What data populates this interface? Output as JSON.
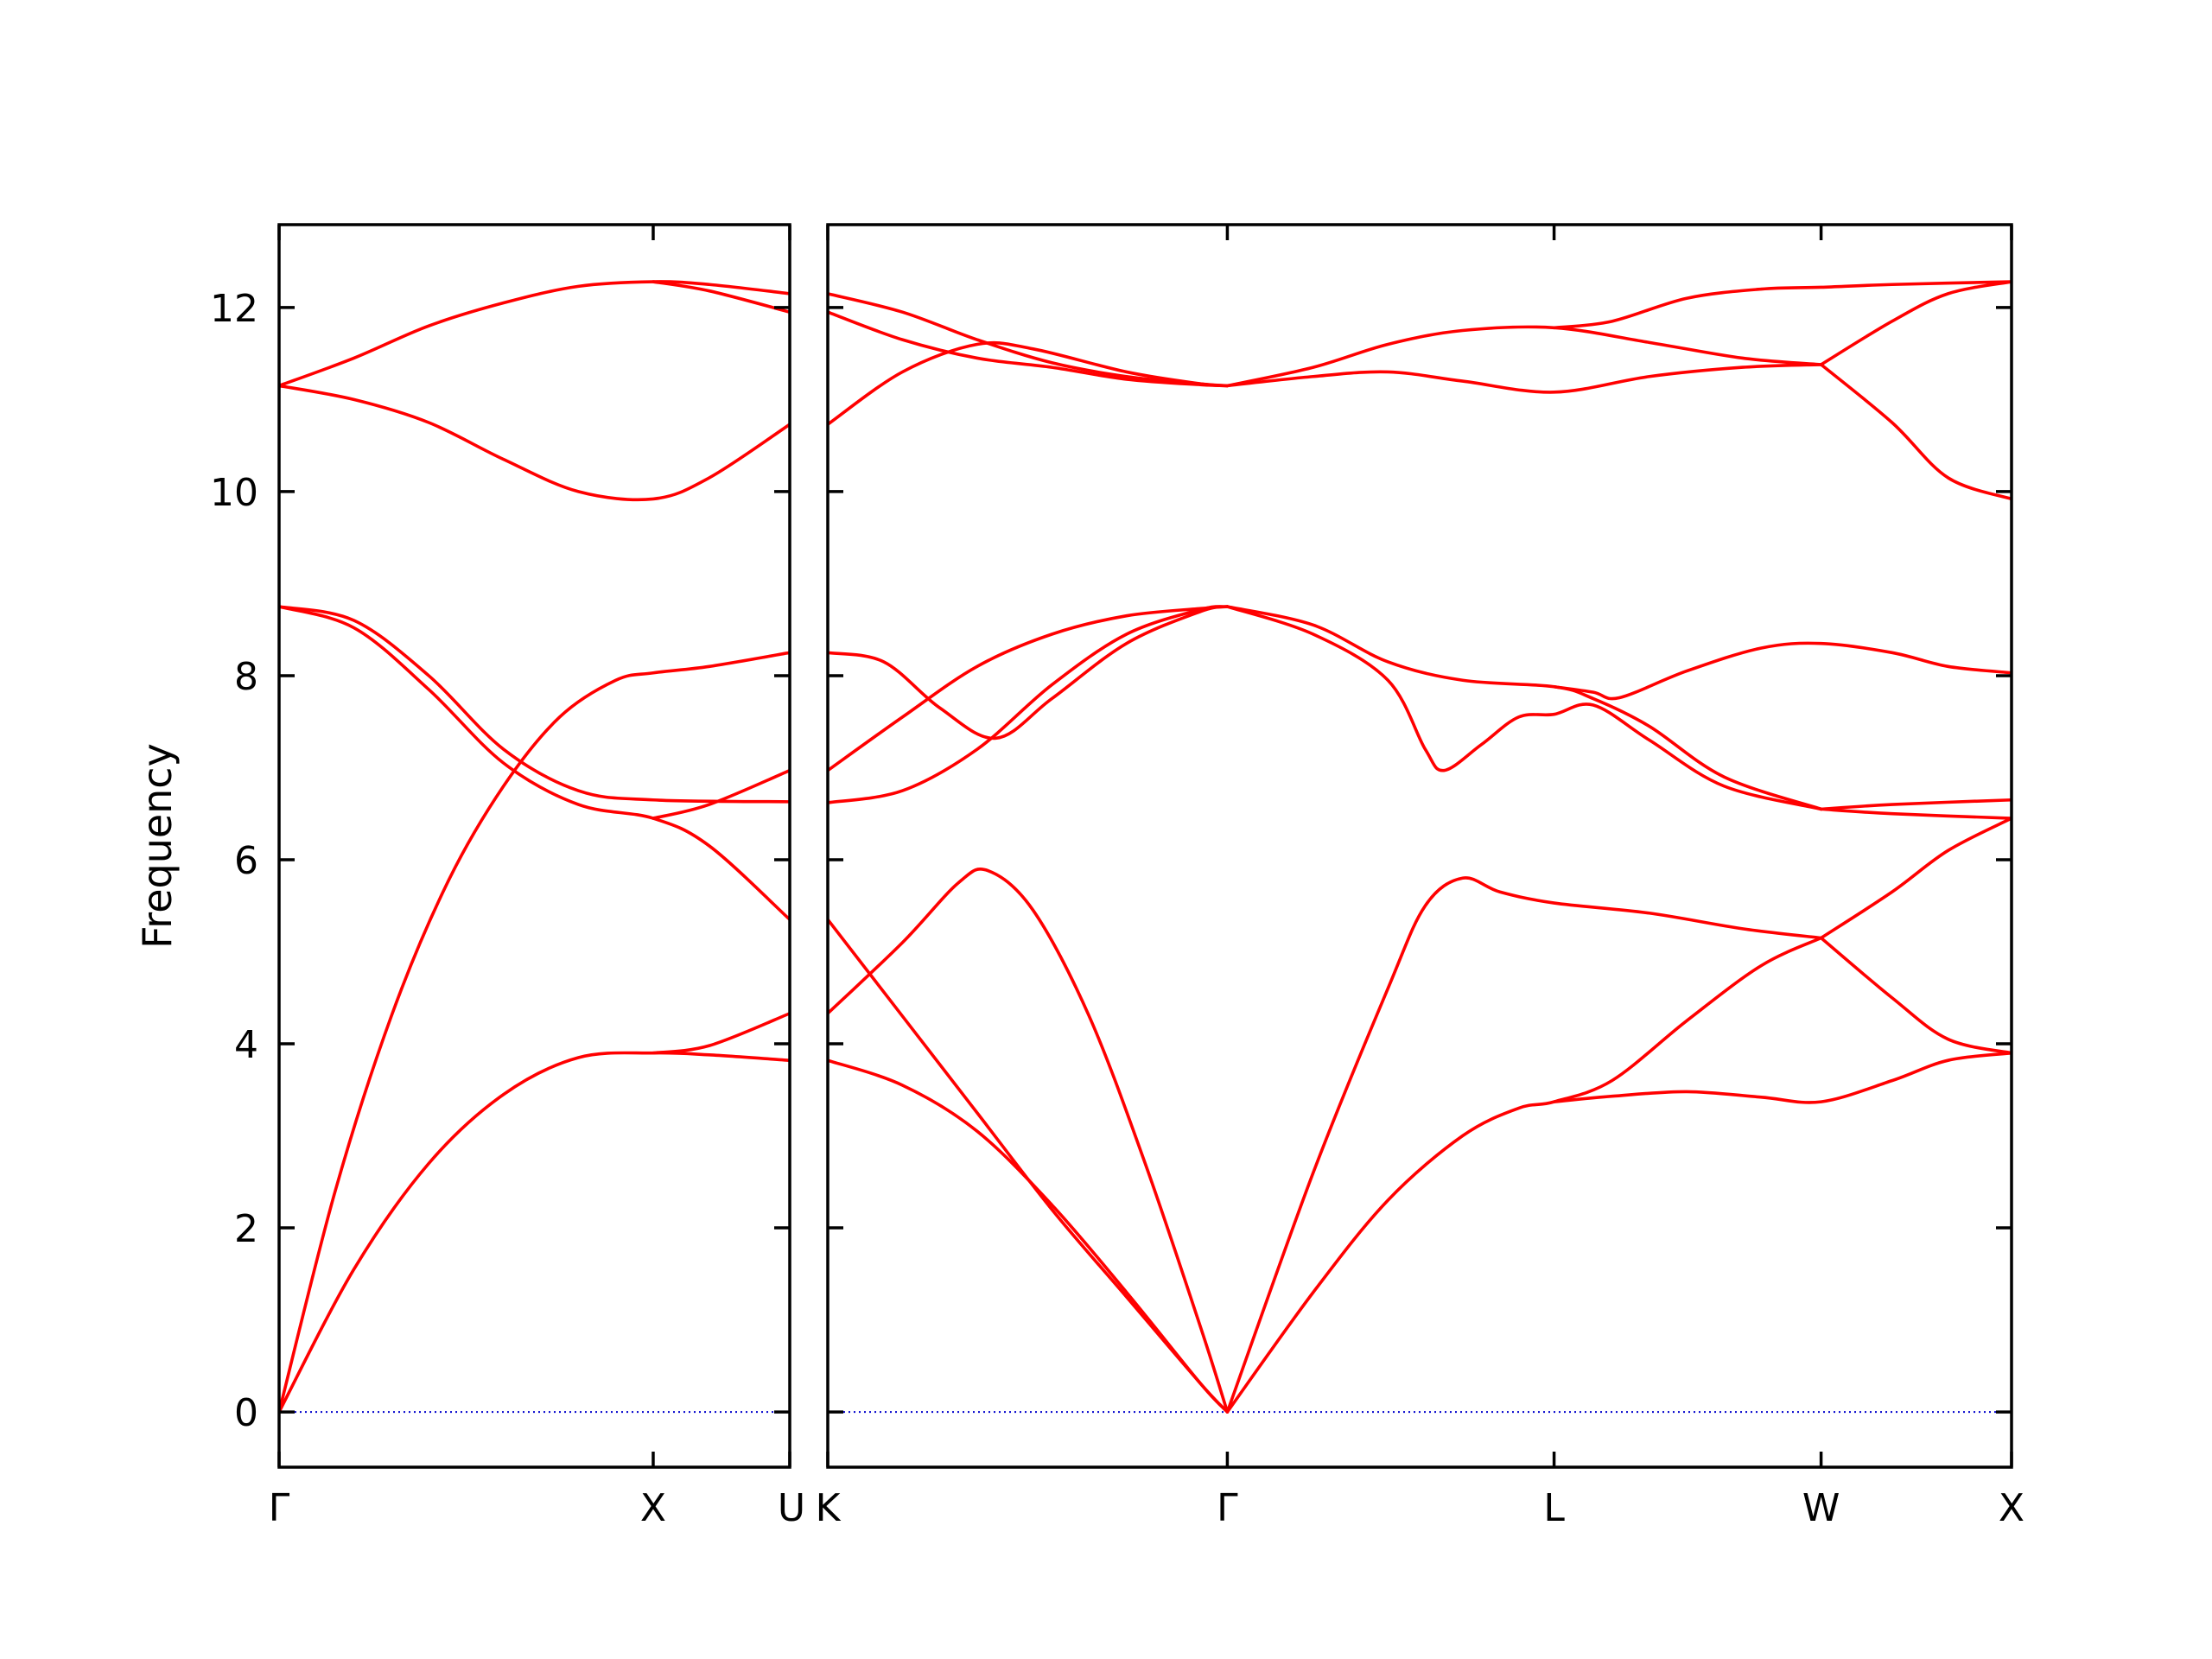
{
  "chart_data": {
    "type": "line",
    "ylabel": "Frequency",
    "ylim": [
      -0.6,
      12.9
    ],
    "yticks": [
      0,
      2,
      4,
      6,
      8,
      10,
      12
    ],
    "band_color": "#ff0000",
    "zero_line_color": "#0000cc",
    "grid": false,
    "legend": "none",
    "panels": [
      {
        "name": "Γ-X-U",
        "xlim": [
          0,
          1.365
        ],
        "xticks": [
          {
            "x": 0,
            "label": "Γ"
          },
          {
            "x": 1.0,
            "label": "X"
          },
          {
            "x": 1.365,
            "label": "U"
          }
        ],
        "bands": [
          [
            [
              0,
              0
            ],
            [
              0.2,
              1.55
            ],
            [
              0.4,
              2.7
            ],
            [
              0.6,
              3.45
            ],
            [
              0.8,
              3.85
            ],
            [
              1.0,
              3.9
            ],
            [
              1.15,
              3.88
            ],
            [
              1.365,
              3.82
            ]
          ],
          [
            [
              0,
              0
            ],
            [
              0.15,
              2.4
            ],
            [
              0.3,
              4.3
            ],
            [
              0.45,
              5.75
            ],
            [
              0.6,
              6.8
            ],
            [
              0.75,
              7.55
            ],
            [
              0.9,
              7.95
            ],
            [
              1.0,
              8.03
            ],
            [
              1.15,
              8.1
            ],
            [
              1.365,
              8.25
            ]
          ],
          [
            [
              0,
              8.75
            ],
            [
              0.2,
              8.52
            ],
            [
              0.4,
              7.85
            ],
            [
              0.6,
              7.05
            ],
            [
              0.8,
              6.6
            ],
            [
              1.0,
              6.45
            ],
            [
              1.15,
              6.15
            ],
            [
              1.365,
              5.35
            ]
          ],
          [
            [
              0,
              8.75
            ],
            [
              0.2,
              8.6
            ],
            [
              0.4,
              8.0
            ],
            [
              0.6,
              7.2
            ],
            [
              0.8,
              6.75
            ],
            [
              1.0,
              6.65
            ],
            [
              1.365,
              6.63
            ]
          ],
          [
            [
              0,
              11.15
            ],
            [
              0.2,
              11.0
            ],
            [
              0.4,
              10.75
            ],
            [
              0.6,
              10.35
            ],
            [
              0.8,
              10.0
            ],
            [
              1.0,
              9.92
            ],
            [
              1.15,
              10.15
            ],
            [
              1.365,
              10.73
            ]
          ],
          [
            [
              0,
              11.15
            ],
            [
              0.2,
              11.45
            ],
            [
              0.4,
              11.8
            ],
            [
              0.6,
              12.05
            ],
            [
              0.8,
              12.23
            ],
            [
              1.0,
              12.28
            ],
            [
              1.15,
              12.25
            ],
            [
              1.365,
              12.15
            ]
          ],
          [
            [
              1.0,
              3.9
            ],
            [
              1.15,
              3.98
            ],
            [
              1.365,
              4.33
            ]
          ],
          [
            [
              1.0,
              6.45
            ],
            [
              1.15,
              6.6
            ],
            [
              1.365,
              6.97
            ]
          ],
          [
            [
              1.0,
              12.28
            ],
            [
              1.15,
              12.18
            ],
            [
              1.365,
              11.95
            ]
          ]
        ]
      },
      {
        "name": "K-Γ-L-W-X",
        "xlim": [
          0,
          3.17
        ],
        "xticks": [
          {
            "x": 0,
            "label": "K"
          },
          {
            "x": 1.07,
            "label": "Γ"
          },
          {
            "x": 1.945,
            "label": "L"
          },
          {
            "x": 2.66,
            "label": "W"
          },
          {
            "x": 3.17,
            "label": "X"
          }
        ],
        "bands": [
          [
            [
              0,
              3.82
            ],
            [
              0.2,
              3.55
            ],
            [
              0.4,
              3.05
            ],
            [
              0.6,
              2.25
            ],
            [
              0.8,
              1.3
            ],
            [
              1.0,
              0.3
            ],
            [
              1.07,
              0
            ]
          ],
          [
            [
              0,
              5.35
            ],
            [
              0.2,
              4.3
            ],
            [
              0.4,
              3.25
            ],
            [
              0.6,
              2.2
            ],
            [
              0.8,
              1.25
            ],
            [
              1.0,
              0.3
            ],
            [
              1.07,
              0
            ]
          ],
          [
            [
              0,
              4.33
            ],
            [
              0.2,
              5.1
            ],
            [
              0.35,
              5.75
            ],
            [
              0.43,
              5.88
            ],
            [
              0.55,
              5.45
            ],
            [
              0.7,
              4.3
            ],
            [
              0.85,
              2.7
            ],
            [
              1.0,
              0.9
            ],
            [
              1.07,
              0
            ]
          ],
          [
            [
              0,
              6.62
            ],
            [
              0.2,
              6.75
            ],
            [
              0.4,
              7.2
            ],
            [
              0.6,
              7.9
            ],
            [
              0.8,
              8.45
            ],
            [
              1.0,
              8.72
            ],
            [
              1.07,
              8.75
            ]
          ],
          [
            [
              0,
              8.25
            ],
            [
              0.15,
              8.15
            ],
            [
              0.3,
              7.65
            ],
            [
              0.45,
              7.32
            ],
            [
              0.6,
              7.75
            ],
            [
              0.8,
              8.35
            ],
            [
              1.0,
              8.7
            ],
            [
              1.07,
              8.75
            ]
          ],
          [
            [
              0,
              6.97
            ],
            [
              0.2,
              7.55
            ],
            [
              0.4,
              8.1
            ],
            [
              0.6,
              8.45
            ],
            [
              0.8,
              8.65
            ],
            [
              1.0,
              8.73
            ],
            [
              1.07,
              8.75
            ]
          ],
          [
            [
              0,
              10.73
            ],
            [
              0.2,
              11.3
            ],
            [
              0.4,
              11.6
            ],
            [
              0.55,
              11.55
            ],
            [
              0.8,
              11.3
            ],
            [
              1.0,
              11.17
            ],
            [
              1.07,
              11.15
            ]
          ],
          [
            [
              0,
              11.95
            ],
            [
              0.2,
              11.65
            ],
            [
              0.4,
              11.45
            ],
            [
              0.6,
              11.35
            ],
            [
              0.8,
              11.22
            ],
            [
              1.0,
              11.16
            ],
            [
              1.07,
              11.15
            ]
          ],
          [
            [
              0,
              12.15
            ],
            [
              0.2,
              11.95
            ],
            [
              0.4,
              11.65
            ],
            [
              0.6,
              11.4
            ],
            [
              0.8,
              11.25
            ],
            [
              1.0,
              11.17
            ],
            [
              1.07,
              11.15
            ]
          ],
          [
            [
              1.07,
              0
            ],
            [
              1.3,
              2.6
            ],
            [
              1.5,
              4.6
            ],
            [
              1.6,
              5.5
            ],
            [
              1.7,
              5.8
            ],
            [
              1.8,
              5.65
            ],
            [
              1.945,
              5.53
            ],
            [
              2.2,
              5.42
            ],
            [
              2.45,
              5.25
            ],
            [
              2.66,
              5.15
            ]
          ],
          [
            [
              1.07,
              0
            ],
            [
              1.3,
              1.3
            ],
            [
              1.5,
              2.3
            ],
            [
              1.7,
              3.0
            ],
            [
              1.85,
              3.3
            ],
            [
              1.945,
              3.37
            ],
            [
              2.1,
              3.6
            ],
            [
              2.3,
              4.25
            ],
            [
              2.5,
              4.85
            ],
            [
              2.66,
              5.15
            ]
          ],
          [
            [
              1.945,
              3.37
            ],
            [
              2.1,
              3.43
            ],
            [
              2.3,
              3.48
            ],
            [
              2.5,
              3.42
            ],
            [
              2.66,
              3.37
            ],
            [
              2.85,
              3.6
            ],
            [
              3.0,
              3.82
            ],
            [
              3.17,
              3.9
            ]
          ],
          [
            [
              2.66,
              5.15
            ],
            [
              2.85,
              5.65
            ],
            [
              3.0,
              6.1
            ],
            [
              3.17,
              6.45
            ]
          ],
          [
            [
              2.66,
              5.15
            ],
            [
              2.85,
              4.5
            ],
            [
              3.0,
              4.05
            ],
            [
              3.17,
              3.9
            ]
          ],
          [
            [
              1.07,
              8.75
            ],
            [
              1.3,
              8.45
            ],
            [
              1.5,
              7.95
            ],
            [
              1.6,
              7.2
            ],
            [
              1.65,
              6.97
            ],
            [
              1.75,
              7.25
            ],
            [
              1.85,
              7.55
            ],
            [
              1.945,
              7.58
            ],
            [
              2.05,
              7.68
            ],
            [
              2.2,
              7.3
            ],
            [
              2.4,
              6.8
            ],
            [
              2.66,
              6.55
            ]
          ],
          [
            [
              1.07,
              8.75
            ],
            [
              1.3,
              8.55
            ],
            [
              1.5,
              8.15
            ],
            [
              1.7,
              7.95
            ],
            [
              1.945,
              7.88
            ],
            [
              2.05,
              7.75
            ],
            [
              2.2,
              7.45
            ],
            [
              2.4,
              6.9
            ],
            [
              2.66,
              6.55
            ]
          ],
          [
            [
              1.945,
              7.88
            ],
            [
              2.05,
              7.82
            ],
            [
              2.12,
              7.76
            ],
            [
              2.3,
              8.05
            ],
            [
              2.5,
              8.3
            ],
            [
              2.66,
              8.35
            ],
            [
              2.85,
              8.25
            ],
            [
              3.0,
              8.1
            ],
            [
              3.17,
              8.03
            ]
          ],
          [
            [
              2.66,
              6.55
            ],
            [
              2.85,
              6.6
            ],
            [
              3.17,
              6.65
            ]
          ],
          [
            [
              2.66,
              6.55
            ],
            [
              2.85,
              6.5
            ],
            [
              3.17,
              6.45
            ]
          ],
          [
            [
              1.07,
              11.15
            ],
            [
              1.3,
              11.25
            ],
            [
              1.5,
              11.3
            ],
            [
              1.7,
              11.2
            ],
            [
              1.945,
              11.08
            ],
            [
              2.2,
              11.25
            ],
            [
              2.45,
              11.35
            ],
            [
              2.66,
              11.38
            ]
          ],
          [
            [
              1.07,
              11.15
            ],
            [
              1.3,
              11.35
            ],
            [
              1.5,
              11.6
            ],
            [
              1.7,
              11.75
            ],
            [
              1.945,
              11.78
            ],
            [
              2.2,
              11.62
            ],
            [
              2.45,
              11.45
            ],
            [
              2.66,
              11.38
            ]
          ],
          [
            [
              1.945,
              11.78
            ],
            [
              2.1,
              11.85
            ],
            [
              2.3,
              12.1
            ],
            [
              2.5,
              12.2
            ],
            [
              2.66,
              12.22
            ],
            [
              2.85,
              12.25
            ],
            [
              3.17,
              12.28
            ]
          ],
          [
            [
              2.66,
              11.38
            ],
            [
              2.85,
              11.85
            ],
            [
              3.0,
              12.15
            ],
            [
              3.17,
              12.28
            ]
          ],
          [
            [
              2.66,
              11.38
            ],
            [
              2.85,
              10.75
            ],
            [
              3.0,
              10.15
            ],
            [
              3.17,
              9.92
            ]
          ]
        ]
      }
    ]
  }
}
